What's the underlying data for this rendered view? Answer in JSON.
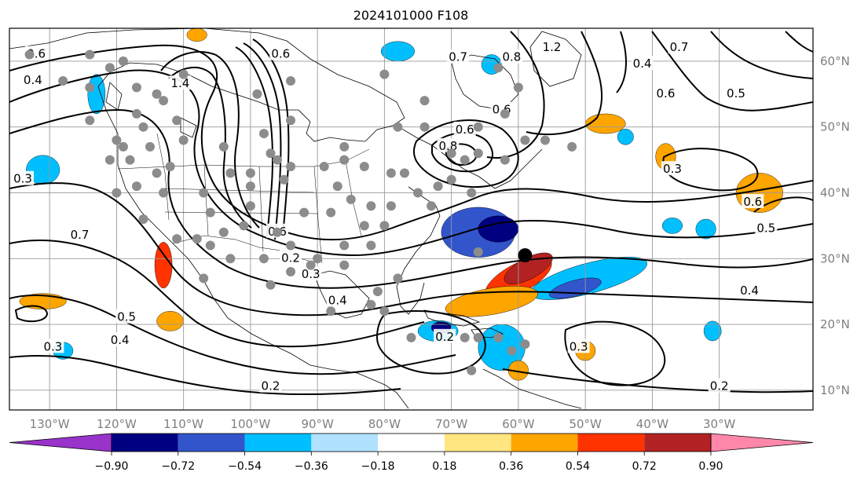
{
  "title": "2024101000 F108",
  "map": {
    "lon_labels": [
      "130°W",
      "120°W",
      "110°W",
      "100°W",
      "90°W",
      "80°W",
      "70°W",
      "60°W",
      "50°W",
      "40°W",
      "30°W"
    ],
    "lat_labels": [
      "60°N",
      "50°N",
      "40°N",
      "30°N",
      "20°N",
      "10°N"
    ],
    "lon_range": [
      -136,
      -16
    ],
    "lat_range": [
      7,
      65
    ]
  },
  "colorbar": {
    "ticks": [
      "−0.90",
      "−0.72",
      "−0.54",
      "−0.36",
      "−0.18",
      "0.18",
      "0.36",
      "0.54",
      "0.72",
      "0.90"
    ],
    "colors": [
      "#9933cc",
      "#000080",
      "#3355cc",
      "#00bfff",
      "#b0e2ff",
      "#ffffff",
      "#ffe680",
      "#ffa500",
      "#ff3300",
      "#b22222",
      "#ff88aa"
    ]
  },
  "contour_labels": [
    {
      "text": "0.6",
      "lon": -132,
      "lat": 61
    },
    {
      "text": "0.4",
      "lon": -132.5,
      "lat": 57
    },
    {
      "text": "0.3",
      "lon": -134,
      "lat": 42
    },
    {
      "text": "1.4",
      "lon": -110.5,
      "lat": 56.5
    },
    {
      "text": "0.6",
      "lon": -95.5,
      "lat": 61
    },
    {
      "text": "0.7",
      "lon": -125.5,
      "lat": 33.5
    },
    {
      "text": "0.6",
      "lon": -96,
      "lat": 34
    },
    {
      "text": "0.2",
      "lon": -94,
      "lat": 30
    },
    {
      "text": "0.3",
      "lon": -91,
      "lat": 27.5
    },
    {
      "text": "0.4",
      "lon": -87,
      "lat": 23.5
    },
    {
      "text": "0.5",
      "lon": -118.5,
      "lat": 21
    },
    {
      "text": "0.4",
      "lon": -119.5,
      "lat": 17.5
    },
    {
      "text": "0.3",
      "lon": -129.5,
      "lat": 16.5
    },
    {
      "text": "0.2",
      "lon": -97,
      "lat": 10.5
    },
    {
      "text": "0.8",
      "lon": -70.5,
      "lat": 47
    },
    {
      "text": "0.6",
      "lon": -68,
      "lat": 49.5
    },
    {
      "text": "0.6",
      "lon": -62.5,
      "lat": 52.5
    },
    {
      "text": "0.7",
      "lon": -69,
      "lat": 60.5
    },
    {
      "text": "0.8",
      "lon": -61,
      "lat": 60.5
    },
    {
      "text": "1.2",
      "lon": -55,
      "lat": 62
    },
    {
      "text": "0.4",
      "lon": -41.5,
      "lat": 59.5
    },
    {
      "text": "0.7",
      "lon": -36,
      "lat": 62
    },
    {
      "text": "0.6",
      "lon": -38,
      "lat": 55
    },
    {
      "text": "0.5",
      "lon": -27.5,
      "lat": 55
    },
    {
      "text": "0.3",
      "lon": -37,
      "lat": 43.5
    },
    {
      "text": "0.6",
      "lon": -25,
      "lat": 38.5
    },
    {
      "text": "0.5",
      "lon": -23,
      "lat": 34.5
    },
    {
      "text": "0.4",
      "lon": -25.5,
      "lat": 25
    },
    {
      "text": "0.2",
      "lon": -30,
      "lat": 10.5
    },
    {
      "text": "0.3",
      "lon": -51,
      "lat": 16.5
    },
    {
      "text": "0.2",
      "lon": -71,
      "lat": 18
    }
  ],
  "positive_anomalies": [
    {
      "lon": -60,
      "lat": 27,
      "rx": 5.5,
      "ry": 2.2,
      "rot": -28,
      "level": "0.54"
    },
    {
      "lon": -58.5,
      "lat": 28.5,
      "rx": 4,
      "ry": 1.6,
      "rot": -28,
      "level": "0.72"
    },
    {
      "lon": -64,
      "lat": 23.5,
      "rx": 7,
      "ry": 2,
      "rot": -10,
      "level": "0.36"
    },
    {
      "lon": -113,
      "lat": 29,
      "rx": 1.3,
      "ry": 3.5,
      "rot": 0,
      "level": "0.54"
    },
    {
      "lon": -131,
      "lat": 23.5,
      "rx": 3.5,
      "ry": 1.2,
      "rot": 0,
      "level": "0.36"
    },
    {
      "lon": -24,
      "lat": 40,
      "rx": 3.5,
      "ry": 3,
      "rot": 0,
      "level": "0.36"
    },
    {
      "lon": -47,
      "lat": 50.5,
      "rx": 3,
      "ry": 1.5,
      "rot": 0,
      "level": "0.36"
    },
    {
      "lon": -38,
      "lat": 45.5,
      "rx": 1.5,
      "ry": 2,
      "rot": 0,
      "level": "0.36"
    },
    {
      "lon": -112,
      "lat": 20.5,
      "rx": 2,
      "ry": 1.5,
      "rot": 0,
      "level": "0.36"
    },
    {
      "lon": -50,
      "lat": 16,
      "rx": 1.5,
      "ry": 1.5,
      "rot": 0,
      "level": "0.36"
    },
    {
      "lon": -60,
      "lat": 13,
      "rx": 1.5,
      "ry": 1.5,
      "rot": 0,
      "level": "0.36"
    },
    {
      "lon": -108,
      "lat": 64,
      "rx": 1.5,
      "ry": 1,
      "rot": 0,
      "level": "0.36"
    }
  ],
  "negative_anomalies": [
    {
      "lon": -66,
      "lat": 34,
      "rx": 5.5,
      "ry": 3.8,
      "rot": 0,
      "level": "-0.54"
    },
    {
      "lon": -63,
      "lat": 34.5,
      "rx": 3,
      "ry": 2,
      "rot": 0,
      "level": "-0.72"
    },
    {
      "lon": -49.5,
      "lat": 27,
      "rx": 9,
      "ry": 2.3,
      "rot": -15,
      "level": "-0.36"
    },
    {
      "lon": -51.5,
      "lat": 25.5,
      "rx": 4,
      "ry": 1.2,
      "rot": -15,
      "level": "-0.54"
    },
    {
      "lon": -62.5,
      "lat": 16.5,
      "rx": 3.5,
      "ry": 3.5,
      "rot": 0,
      "level": "-0.36"
    },
    {
      "lon": -72,
      "lat": 19,
      "rx": 3,
      "ry": 1.6,
      "rot": 0,
      "level": "-0.36"
    },
    {
      "lon": -71.5,
      "lat": 19.5,
      "rx": 1.5,
      "ry": 0.9,
      "rot": 0,
      "level": "-0.72"
    },
    {
      "lon": -131,
      "lat": 43.5,
      "rx": 2.5,
      "ry": 2.2,
      "rot": 0,
      "level": "-0.36"
    },
    {
      "lon": -123,
      "lat": 55,
      "rx": 1.3,
      "ry": 3,
      "rot": 0,
      "level": "-0.36"
    },
    {
      "lon": -78,
      "lat": 61.5,
      "rx": 2.5,
      "ry": 1.5,
      "rot": 0,
      "level": "-0.36"
    },
    {
      "lon": -64,
      "lat": 59.5,
      "rx": 1.5,
      "ry": 1.5,
      "rot": 0,
      "level": "-0.36"
    },
    {
      "lon": -32,
      "lat": 34.5,
      "rx": 1.5,
      "ry": 1.5,
      "rot": 0,
      "level": "-0.36"
    },
    {
      "lon": -37,
      "lat": 35,
      "rx": 1.5,
      "ry": 1.2,
      "rot": 0,
      "level": "-0.36"
    },
    {
      "lon": -31,
      "lat": 19,
      "rx": 1.3,
      "ry": 1.5,
      "rot": 0,
      "level": "-0.36"
    },
    {
      "lon": -128,
      "lat": 16,
      "rx": 1.5,
      "ry": 1.3,
      "rot": 0,
      "level": "-0.36"
    },
    {
      "lon": -44,
      "lat": 48.5,
      "rx": 1.2,
      "ry": 1.2,
      "rot": 0,
      "level": "-0.36"
    }
  ],
  "gray_points": [
    [
      -133,
      61
    ],
    [
      -124,
      61
    ],
    [
      -119,
      60
    ],
    [
      -121,
      59
    ],
    [
      -128,
      57
    ],
    [
      -124,
      56
    ],
    [
      -117,
      56
    ],
    [
      -114,
      55
    ],
    [
      -113,
      54
    ],
    [
      -117,
      52
    ],
    [
      -124,
      51
    ],
    [
      -111,
      51
    ],
    [
      -120,
      48
    ],
    [
      -115,
      47
    ],
    [
      -110,
      48
    ],
    [
      -121,
      45
    ],
    [
      -118,
      45
    ],
    [
      -114,
      43
    ],
    [
      -117,
      41
    ],
    [
      -113,
      40
    ],
    [
      -120,
      40
    ],
    [
      -107,
      40
    ],
    [
      -103,
      43
    ],
    [
      -100,
      41
    ],
    [
      -95,
      42
    ],
    [
      -94,
      44
    ],
    [
      -97,
      46
    ],
    [
      -99,
      55
    ],
    [
      -94,
      57
    ],
    [
      -89,
      44
    ],
    [
      -86,
      45
    ],
    [
      -83,
      44
    ],
    [
      -87,
      41
    ],
    [
      -85,
      39
    ],
    [
      -79,
      43
    ],
    [
      -77,
      43
    ],
    [
      -83,
      35
    ],
    [
      -80,
      35
    ],
    [
      -86,
      32
    ],
    [
      -86,
      29
    ],
    [
      -90,
      30
    ],
    [
      -94,
      32
    ],
    [
      -98,
      30
    ],
    [
      -101,
      35
    ],
    [
      -104,
      34
    ],
    [
      -106,
      37
    ],
    [
      -100,
      38
    ],
    [
      -92,
      37
    ],
    [
      -88,
      37
    ],
    [
      -82,
      38
    ],
    [
      -75,
      40
    ],
    [
      -72,
      41
    ],
    [
      -70,
      46
    ],
    [
      -68,
      45
    ],
    [
      -66,
      46
    ],
    [
      -66,
      50
    ],
    [
      -62,
      45
    ],
    [
      -59,
      48
    ],
    [
      -56,
      48
    ],
    [
      -52,
      47
    ],
    [
      -78,
      50
    ],
    [
      -74,
      50
    ],
    [
      -74,
      54
    ],
    [
      -80,
      58
    ],
    [
      -63,
      59
    ],
    [
      -60,
      56
    ],
    [
      -62,
      52
    ],
    [
      -94,
      51
    ],
    [
      -98,
      49
    ],
    [
      -108,
      33
    ],
    [
      -111,
      33
    ],
    [
      -103,
      30
    ],
    [
      -97,
      26
    ],
    [
      -81,
      25
    ],
    [
      -78,
      27
    ],
    [
      -82,
      23
    ],
    [
      -80,
      22
    ],
    [
      -88,
      22
    ],
    [
      -76,
      18
    ],
    [
      -68,
      18
    ],
    [
      -66,
      18
    ],
    [
      -63,
      18
    ],
    [
      -61,
      16
    ],
    [
      -107,
      27
    ],
    [
      -66,
      31
    ],
    [
      -70,
      42
    ],
    [
      -67,
      40
    ],
    [
      -73,
      38
    ],
    [
      -79,
      38
    ],
    [
      -91,
      29
    ],
    [
      -96,
      34
    ],
    [
      -94,
      28
    ],
    [
      -100,
      43
    ],
    [
      -106,
      32
    ],
    [
      -116,
      36
    ],
    [
      -119,
      47
    ],
    [
      -110,
      58
    ],
    [
      -96,
      45
    ],
    [
      -86,
      47
    ],
    [
      -82,
      32
    ],
    [
      -104,
      47
    ],
    [
      -112,
      44
    ],
    [
      -116,
      50
    ],
    [
      -67,
      13
    ],
    [
      -59,
      17
    ]
  ],
  "marker": {
    "lon": -59,
    "lat": 30.5
  }
}
